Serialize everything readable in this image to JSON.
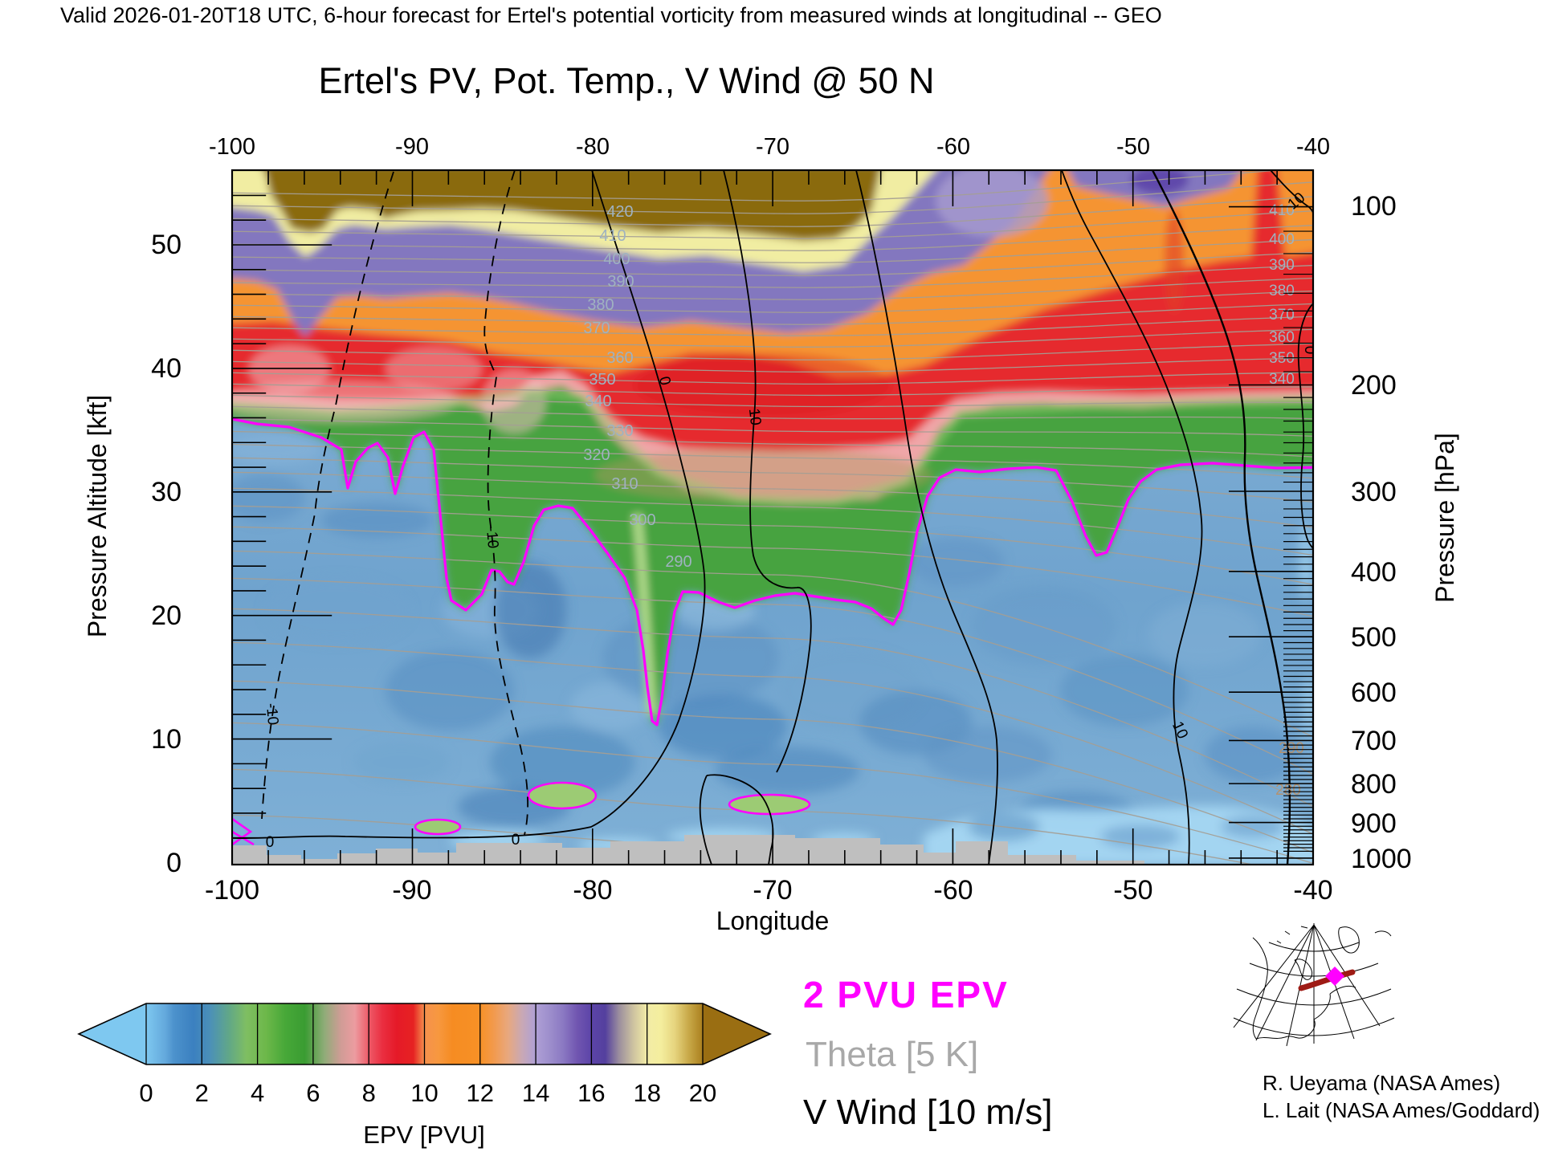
{
  "header": {
    "validity_line": "Valid 2026-01-20T18 UTC, 6-hour forecast for Ertel's potential vorticity from measured winds at longitudinal -- GEO"
  },
  "title": "Ertel's PV, Pot. Temp., V Wind @ 50 N",
  "axes": {
    "x": {
      "label": "Longitude",
      "ticks": [
        "-100",
        "-90",
        "-80",
        "-70",
        "-60",
        "-50",
        "-40"
      ]
    },
    "y_left": {
      "label": "Pressure Altitude [kft]",
      "ticks": [
        "0",
        "10",
        "20",
        "30",
        "40",
        "50"
      ]
    },
    "y_right": {
      "label": "Pressure [hPa]",
      "ticks": [
        "100",
        "200",
        "300",
        "400",
        "500",
        "600",
        "700",
        "800",
        "900",
        "1000"
      ]
    }
  },
  "colorbar": {
    "label": "EPV [PVU]",
    "ticks": [
      "0",
      "2",
      "4",
      "6",
      "8",
      "10",
      "12",
      "14",
      "16",
      "18",
      "20"
    ]
  },
  "legend": [
    {
      "text": "2 PVU EPV",
      "color": "#FF00FF"
    },
    {
      "text": "Theta [5 K]",
      "color": "#A8A8A8"
    },
    {
      "text": "V Wind [10 m/s]",
      "color": "#000000"
    }
  ],
  "credits": [
    "R. Ueyama (NASA Ames)",
    "L. Lait (NASA Ames/Goddard)"
  ],
  "plot": {
    "theta_labels_main": [
      "420",
      "410",
      "400",
      "390",
      "380",
      "370",
      "360",
      "350",
      "340",
      "330",
      "320",
      "310",
      "300",
      "290"
    ],
    "theta_labels_right": [
      "410",
      "400",
      "390",
      "380",
      "370",
      "360",
      "350",
      "340"
    ],
    "theta_labels_low": [
      "290",
      "280"
    ],
    "wind_labels": [
      "0",
      "10",
      "-10",
      "-10",
      "0",
      "0",
      "10",
      "10",
      "0"
    ]
  },
  "chart_data": {
    "type": "heatmap",
    "subtype": "longitude-height cross section with filled EPV contours, theta line contours and V-wind line contours",
    "title": "Ertel's PV, Pot. Temp., V Wind @ 50 N",
    "xlabel": "Longitude",
    "ylabel_left": "Pressure Altitude [kft]",
    "ylabel_right": "Pressure [hPa]",
    "xlim": [
      -100,
      -40
    ],
    "ylim_kft": [
      0,
      56
    ],
    "pressure_ticks_hPa": [
      100,
      200,
      300,
      400,
      500,
      600,
      700,
      800,
      900,
      1000
    ],
    "filled_field": "Ertel potential vorticity (EPV)",
    "fill_units": "PVU",
    "colorbar_range": [
      0,
      20
    ],
    "colorbar_interval": 2,
    "line_contours": [
      {
        "field": "2 PVU EPV tropopause",
        "color": "magenta"
      },
      {
        "field": "Theta",
        "interval_K": 5,
        "labeled_values": [
          280,
          290,
          300,
          310,
          320,
          330,
          340,
          350,
          360,
          370,
          380,
          390,
          400,
          410,
          420
        ],
        "color": "gray"
      },
      {
        "field": "V Wind",
        "interval_ms": 10,
        "labeled_values": [
          -10,
          0,
          10
        ],
        "negative_style": "dashed",
        "color": "black"
      }
    ],
    "tropopause_2pvu_line": {
      "lon": [
        -100,
        -93.9,
        -93.6,
        -89.3,
        -87.9,
        -85.3,
        -82.7,
        -81.1,
        -76.7,
        -75.1,
        -69.9,
        -64.3,
        -63.3,
        -61.4,
        -59.8,
        -55.4,
        -52.1,
        -48.7,
        -43.8,
        -40
      ],
      "kft": [
        35.9,
        33.4,
        30.3,
        34.8,
        21.2,
        23.9,
        28.7,
        28.7,
        11.5,
        21.9,
        21.6,
        20.4,
        19.3,
        29.6,
        31.8,
        32.0,
        24.8,
        31.8,
        32.1,
        32.0
      ]
    },
    "notes": "Stratospheric high-EPV (red/orange/purple/brown >8 PVU) aloft; tropospheric low EPV (<2 PVU, blue) below magenta 2-PVU line; tropopause fold near -77 longitude reaching ~11 kft; gray strip along bottom = below-surface terrain mask."
  }
}
